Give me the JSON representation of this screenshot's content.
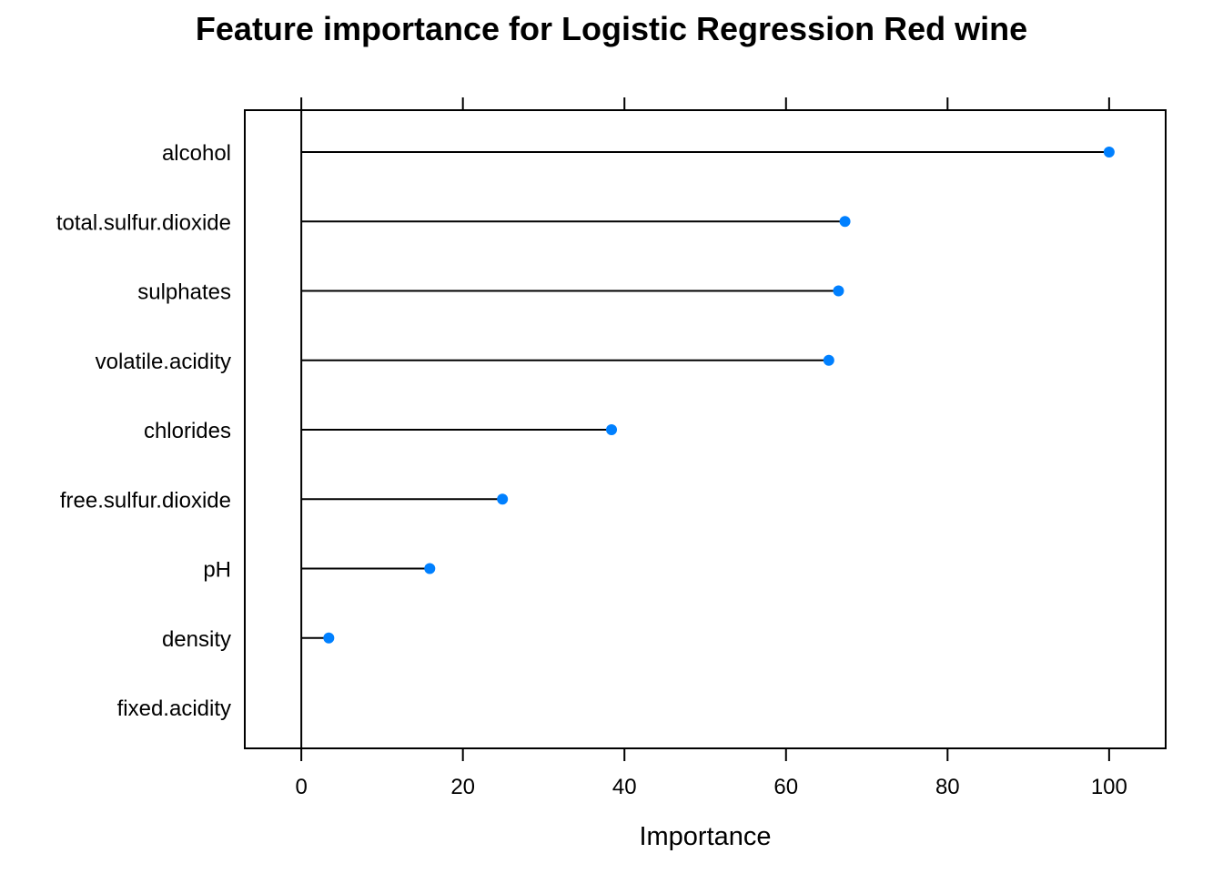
{
  "chart_data": {
    "type": "dotplot",
    "title": "Feature importance for Logistic Regression Red wine",
    "xlabel": "Importance",
    "ylabel": "",
    "xlim": [
      -7,
      107
    ],
    "x_ticks": [
      0,
      20,
      40,
      60,
      80,
      100
    ],
    "categories": [
      "alcohol",
      "total.sulfur.dioxide",
      "sulphates",
      "volatile.acidity",
      "chlorides",
      "free.sulfur.dioxide",
      "pH",
      "density",
      "fixed.acidity"
    ],
    "values": [
      100,
      67.3,
      66.5,
      65.3,
      38.4,
      24.9,
      15.9,
      3.4,
      0
    ],
    "point_color": "#0080ff",
    "line_color": "#000000",
    "grid": false,
    "legend": "none"
  }
}
